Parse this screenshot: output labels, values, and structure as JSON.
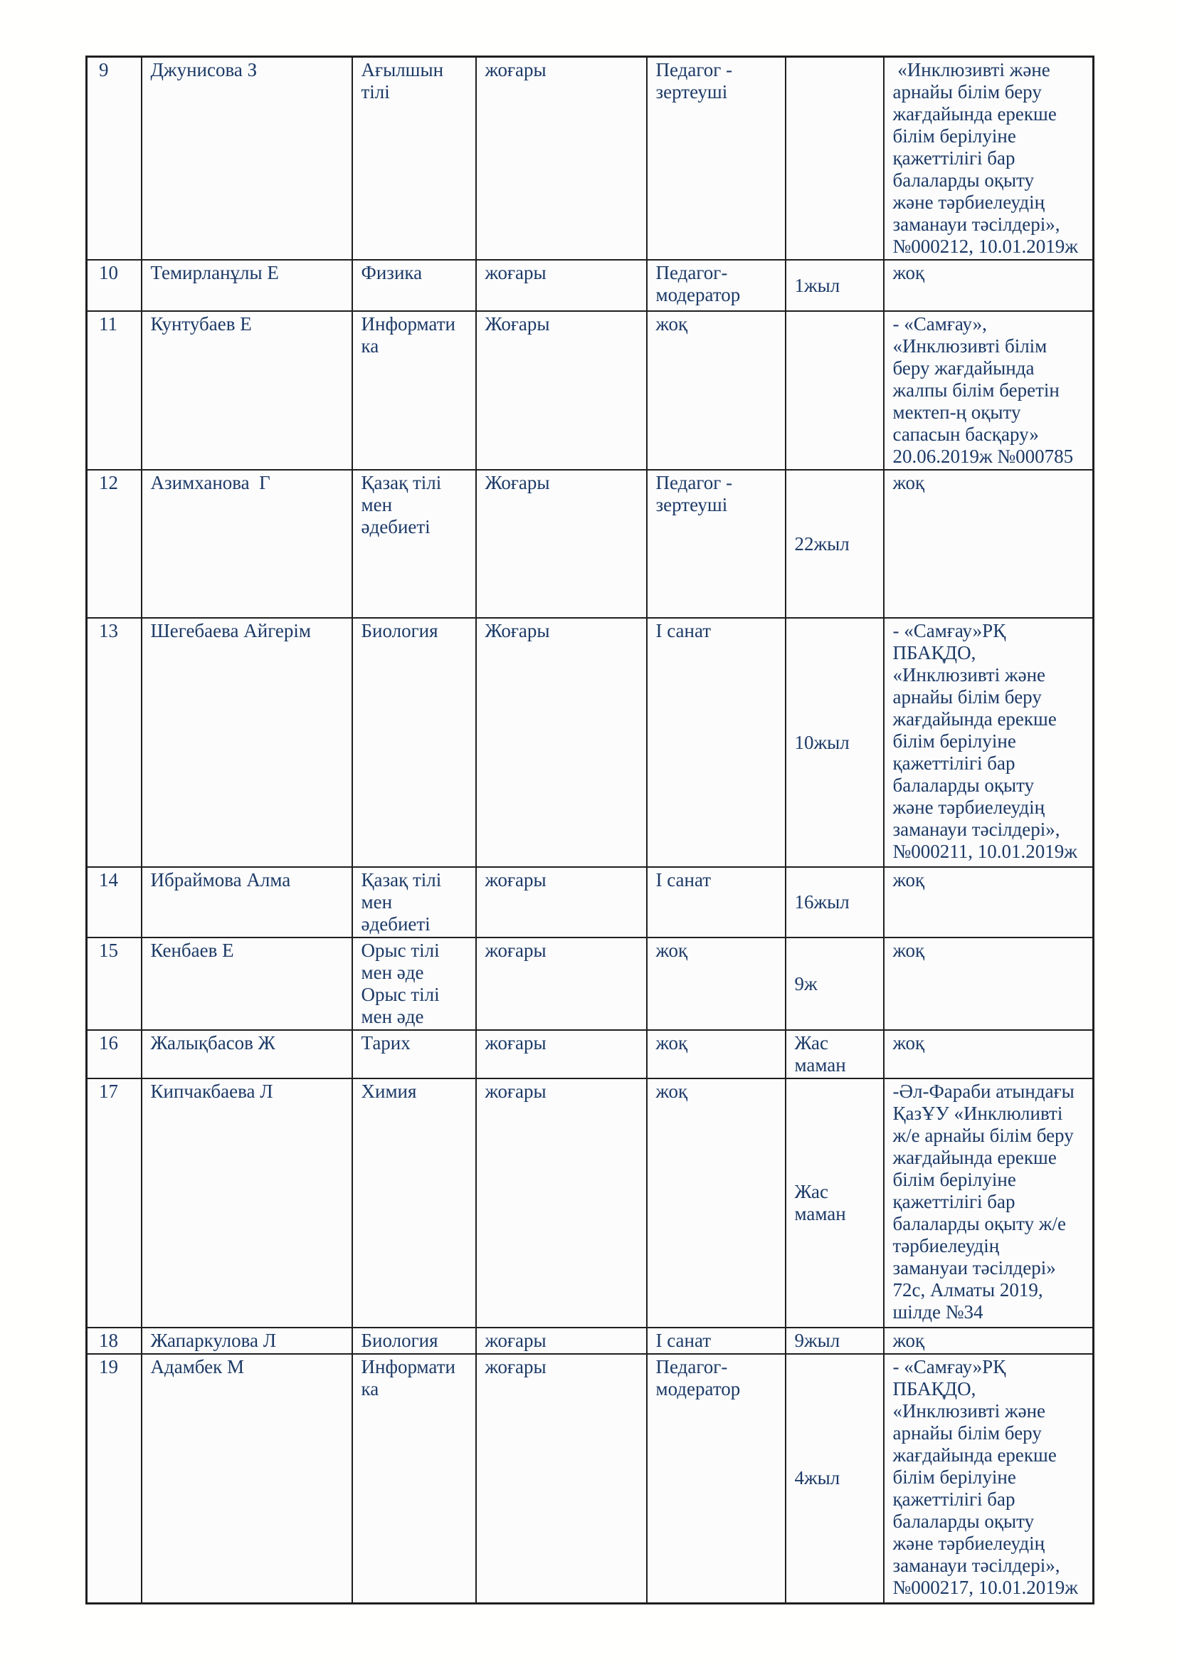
{
  "document": {
    "language": "kazakh",
    "text_color": "#1c3a66",
    "rows": [
      {
        "num": "9",
        "name": "Джунисова З",
        "subject": "Ағылшын\nтілі",
        "education": "жоғары",
        "category": "Педагог -\nзертеуші",
        "experience": "",
        "courses": " «Инклюзивті және\nарнайы білім беру\nжағдайында ерекше\nбілім берілуіне\nқажеттілігі бар\nбалаларды оқыту\nжәне тәрбиелеудің\nзаманауи тәсілдері»,\n№000212, 10.01.2019ж"
      },
      {
        "num": "10",
        "name": "Темирланұлы Е",
        "subject": "Физика",
        "education": "жоғары",
        "category": "Педагог-\nмодератор",
        "experience": "1жыл",
        "courses": "жоқ"
      },
      {
        "num": "11",
        "name": "Кунтубаев Е",
        "subject": "Информати\nка",
        "education": "Жоғары",
        "category": "жоқ",
        "experience": "",
        "courses": "- «Самғау»,\n«Инклюзивті білім\nберу жағдайында\nжалпы білім беретін\nмектеп-ң оқыту\nсапасын басқару»\n20.06.2019ж №000785"
      },
      {
        "num": "12",
        "name": "Азимханова  Г",
        "subject": "Қазақ тілі\nмен\nәдебиеті",
        "education": "Жоғары",
        "category": "Педагог -\nзертеуші",
        "experience": "22жыл",
        "courses": "жоқ"
      },
      {
        "num": "13",
        "name": "Шегебаева Айгерім",
        "subject": "Биология",
        "education": "Жоғары",
        "category": "І санат",
        "experience": "10жыл",
        "courses": "- «Самғау»РҚ\nПБАҚДО,\n«Инклюзивті және\nарнайы білім беру\nжағдайында ерекше\nбілім берілуіне\nқажеттілігі бар\nбалаларды оқыту\nжәне тәрбиелеудің\nзаманауи тәсілдері»,\n№000211, 10.01.2019ж"
      },
      {
        "num": "14",
        "name": "Ибраймова Алма",
        "subject": "Қазақ тілі\nмен\nәдебиеті",
        "education": "жоғары",
        "category": "І санат",
        "experience": "16жыл",
        "courses": "жоқ"
      },
      {
        "num": "15",
        "name": "Кенбаев Е",
        "subject": "Орыс тілі\nмен әде\nОрыс тілі\nмен әде",
        "education": "жоғары",
        "category": "жоқ",
        "experience": "9ж",
        "courses": "жоқ"
      },
      {
        "num": "16",
        "name": "Жалықбасов Ж",
        "subject": "Тарих",
        "education": "жоғары",
        "category": "жоқ",
        "experience": "Жас\nмаман",
        "courses": "жоқ"
      },
      {
        "num": "17",
        "name": "Кипчакбаева Л",
        "subject": "Химия",
        "education": "жоғары",
        "category": "жоқ",
        "experience": "Жас\nмаман",
        "courses": "-Әл-Фараби атындағы\nҚазҰУ «Инклюливті\nж/е арнайы білім беру\nжағдайында ерекше\nбілім берілуіне\nқажеттілігі бар\nбалаларды оқыту ж/е\nтәрбиелеудің\nзамануаи тәсілдері»\n72с, Алматы 2019,\nшілде №34"
      },
      {
        "num": "18",
        "name": "Жапаркулова Л",
        "subject": "Биология",
        "education": "жоғары",
        "category": "І санат",
        "experience": "9жыл",
        "courses": "жоқ"
      },
      {
        "num": "19",
        "name": "Адамбек М",
        "subject": "Информати\nка",
        "education": "жоғары",
        "category": "Педагог-\nмодератор",
        "experience": "4жыл",
        "courses": "- «Самғау»РҚ\nПБАҚДО,\n«Инклюзивті және\nарнайы білім беру\nжағдайында ерекше\nбілім берілуіне\nқажеттілігі бар\nбалаларды оқыту\nжәне тәрбиелеудің\nзаманауи тәсілдері»,\n№000217, 10.01.2019ж"
      }
    ]
  }
}
